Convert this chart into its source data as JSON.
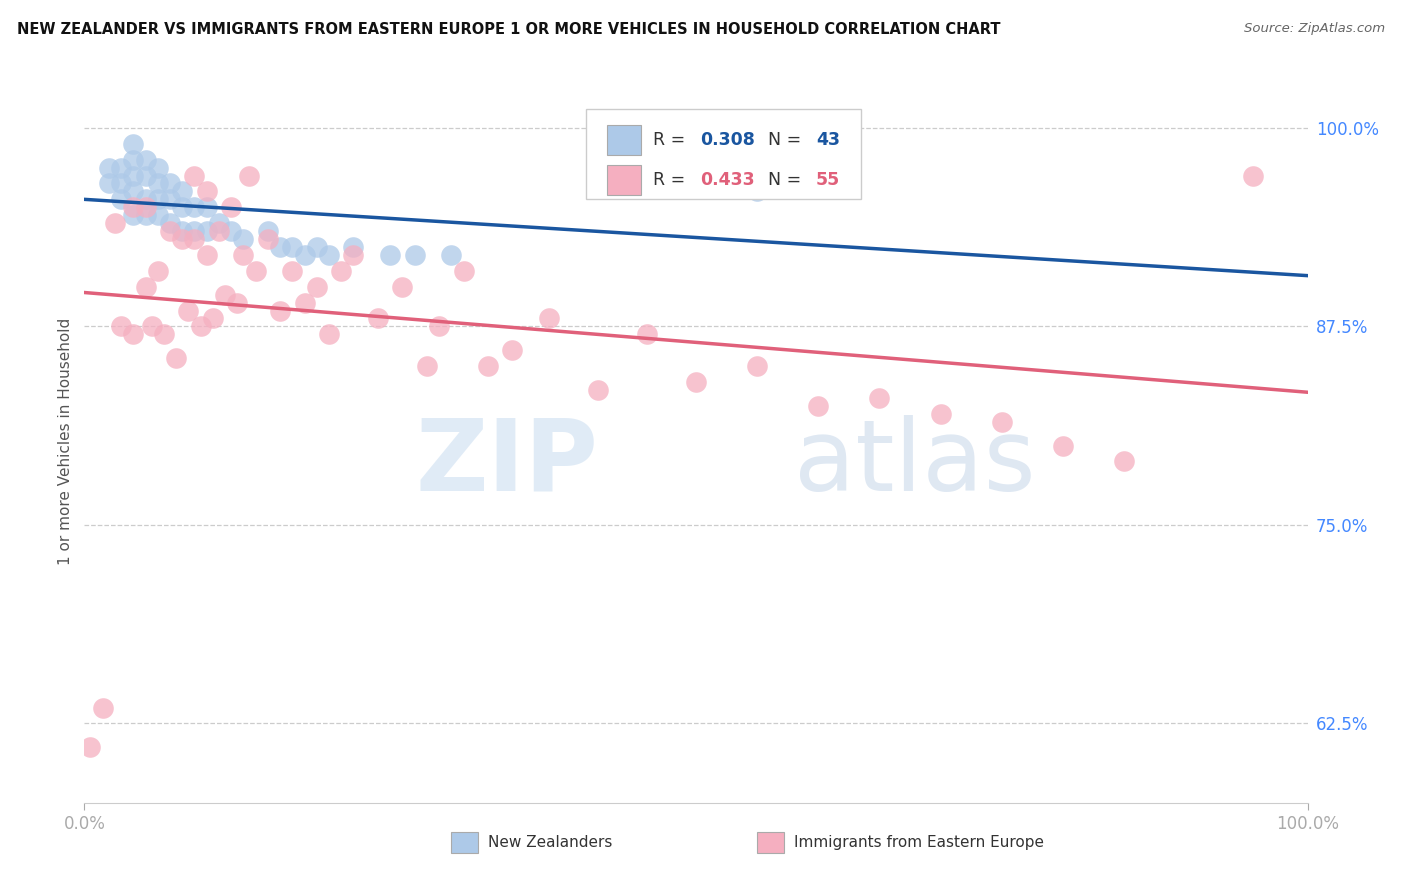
{
  "title": "NEW ZEALANDER VS IMMIGRANTS FROM EASTERN EUROPE 1 OR MORE VEHICLES IN HOUSEHOLD CORRELATION CHART",
  "source": "Source: ZipAtlas.com",
  "ylabel": "1 or more Vehicles in Household",
  "xlim": [
    0.0,
    1.0
  ],
  "ylim": [
    0.575,
    1.03
  ],
  "x_tick_labels": [
    "0.0%",
    "100.0%"
  ],
  "x_tick_vals": [
    0.0,
    1.0
  ],
  "y_tick_labels": [
    "62.5%",
    "75.0%",
    "87.5%",
    "100.0%"
  ],
  "y_tick_vals": [
    0.625,
    0.75,
    0.875,
    1.0
  ],
  "legend_R_nz": "0.308",
  "legend_N_nz": "43",
  "legend_R_ee": "0.433",
  "legend_N_ee": "55",
  "nz_color": "#adc9e8",
  "ee_color": "#f5afc0",
  "nz_line_color": "#1a56a0",
  "ee_line_color": "#e0607a",
  "nz_label": "New Zealanders",
  "ee_label": "Immigrants from Eastern Europe",
  "background_color": "#ffffff",
  "watermark_zip": "ZIP",
  "watermark_atlas": "atlas",
  "nz_x": [
    0.02,
    0.02,
    0.03,
    0.03,
    0.03,
    0.04,
    0.04,
    0.04,
    0.04,
    0.04,
    0.05,
    0.05,
    0.05,
    0.05,
    0.06,
    0.06,
    0.06,
    0.06,
    0.07,
    0.07,
    0.07,
    0.08,
    0.08,
    0.08,
    0.09,
    0.09,
    0.1,
    0.1,
    0.11,
    0.12,
    0.13,
    0.15,
    0.16,
    0.17,
    0.18,
    0.19,
    0.2,
    0.22,
    0.25,
    0.27,
    0.3,
    0.55,
    0.62
  ],
  "nz_y": [
    0.965,
    0.975,
    0.955,
    0.965,
    0.975,
    0.945,
    0.96,
    0.97,
    0.98,
    0.99,
    0.945,
    0.955,
    0.97,
    0.98,
    0.945,
    0.955,
    0.965,
    0.975,
    0.94,
    0.955,
    0.965,
    0.935,
    0.95,
    0.96,
    0.935,
    0.95,
    0.935,
    0.95,
    0.94,
    0.935,
    0.93,
    0.935,
    0.925,
    0.925,
    0.92,
    0.925,
    0.92,
    0.925,
    0.92,
    0.92,
    0.92,
    0.96,
    0.97
  ],
  "ee_x": [
    0.005,
    0.015,
    0.025,
    0.03,
    0.04,
    0.04,
    0.05,
    0.05,
    0.055,
    0.06,
    0.065,
    0.07,
    0.075,
    0.08,
    0.085,
    0.09,
    0.09,
    0.095,
    0.1,
    0.1,
    0.105,
    0.11,
    0.115,
    0.12,
    0.125,
    0.13,
    0.135,
    0.14,
    0.15,
    0.16,
    0.17,
    0.18,
    0.19,
    0.2,
    0.21,
    0.22,
    0.24,
    0.26,
    0.28,
    0.29,
    0.31,
    0.33,
    0.35,
    0.38,
    0.42,
    0.46,
    0.5,
    0.55,
    0.6,
    0.65,
    0.7,
    0.75,
    0.8,
    0.85,
    0.955
  ],
  "ee_y": [
    0.61,
    0.635,
    0.94,
    0.875,
    0.95,
    0.87,
    0.9,
    0.95,
    0.875,
    0.91,
    0.87,
    0.935,
    0.855,
    0.93,
    0.885,
    0.93,
    0.97,
    0.875,
    0.92,
    0.96,
    0.88,
    0.935,
    0.895,
    0.95,
    0.89,
    0.92,
    0.97,
    0.91,
    0.93,
    0.885,
    0.91,
    0.89,
    0.9,
    0.87,
    0.91,
    0.92,
    0.88,
    0.9,
    0.85,
    0.875,
    0.91,
    0.85,
    0.86,
    0.88,
    0.835,
    0.87,
    0.84,
    0.85,
    0.825,
    0.83,
    0.82,
    0.815,
    0.8,
    0.79,
    0.97
  ]
}
